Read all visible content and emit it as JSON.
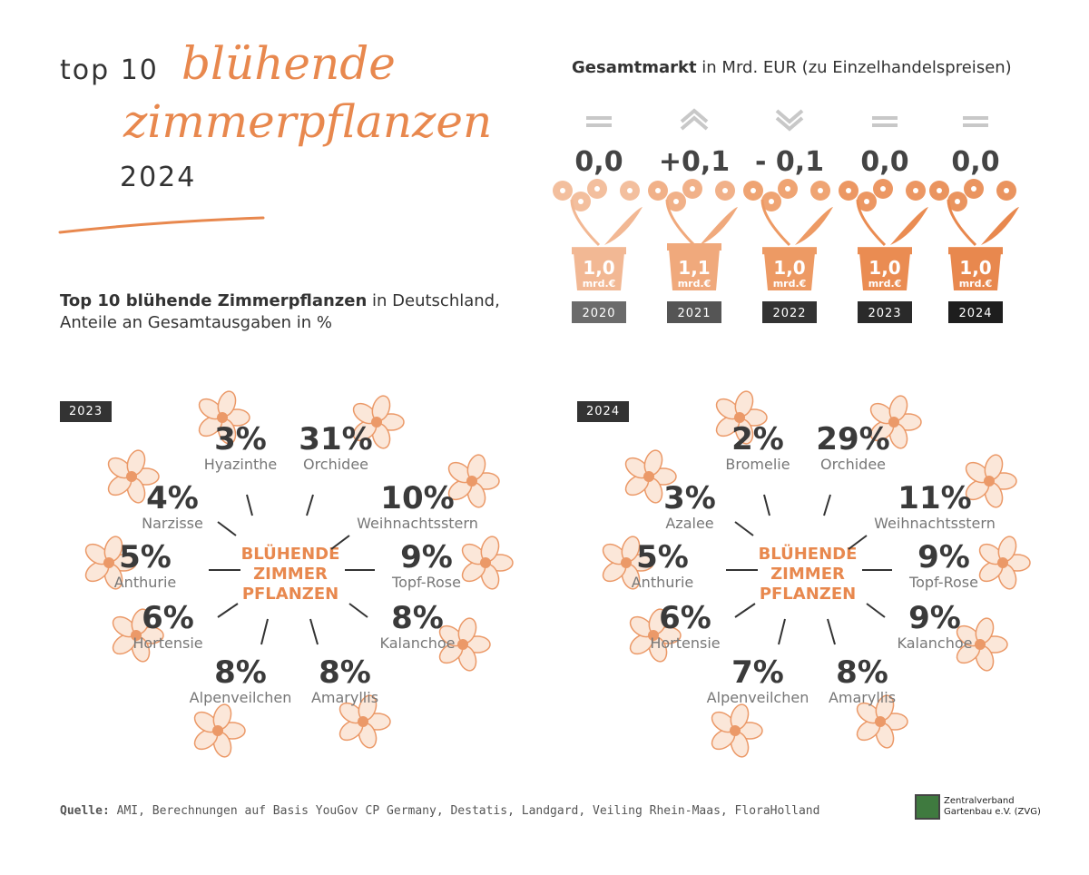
{
  "header": {
    "top_label": "top 10",
    "script_line1": "blühende",
    "script_line2": "zimmerpflanzen",
    "year": "2024"
  },
  "market": {
    "title_bold": "Gesamtmarkt",
    "title_rest": " in Mrd. EUR (zu Einzelhandelspreisen)",
    "accent": "#e8884e",
    "dark": "#333333"
  },
  "subtitle": {
    "bold": "Top 10 blühende Zimmerpflanzen",
    "rest": " in Deutschland,",
    "line2": "Anteile an Gesamtausgaben in %"
  },
  "center_label": [
    "BLÜHENDE",
    "ZIMMER",
    "PFLANZEN"
  ],
  "source": {
    "label": "Quelle:",
    "text": " AMI, Berechnungen auf Basis YouGov CP Germany, Destatis, Landgard, Veiling Rhein-Maas, FloraHolland"
  },
  "logo": {
    "line1": "Zentralverband",
    "line2": "Gartenbau e.V. (ZVG)"
  },
  "chart_data": [
    {
      "type": "bar",
      "title": "Gesamtmarkt in Mrd. EUR (zu Einzelhandelspreisen)",
      "categories": [
        "2020",
        "2021",
        "2022",
        "2023",
        "2024"
      ],
      "series": [
        {
          "values": [
            1.0,
            1.1,
            1.0,
            1.0,
            1.0
          ],
          "labels": [
            "1,0",
            "1,1",
            "1,0",
            "1,0",
            "1,0"
          ]
        }
      ],
      "unit_label": "mrd.€",
      "changes": [
        "0,0",
        "+0,1",
        "- 0,1",
        "0,0",
        "0,0"
      ],
      "trend_icons": [
        "equal-icon",
        "up-chevron-icon",
        "down-chevron-icon",
        "equal-icon",
        "equal-icon"
      ]
    },
    {
      "type": "table",
      "title": "2023",
      "categories": [
        "Hyazinthe",
        "Orchidee",
        "Narzisse",
        "Weihnachtsstern",
        "Anthurie",
        "Topf-Rose",
        "Hortensie",
        "Kalanchoe",
        "Alpenveilchen",
        "Amaryllis"
      ],
      "values": [
        3,
        31,
        4,
        10,
        5,
        9,
        6,
        8,
        8,
        8
      ],
      "labels": [
        "3%",
        "31%",
        "4%",
        "10%",
        "5%",
        "9%",
        "6%",
        "8%",
        "8%",
        "8%"
      ]
    },
    {
      "type": "table",
      "title": "2024",
      "categories": [
        "Bromelie",
        "Orchidee",
        "Azalee",
        "Weihnachtsstern",
        "Anthurie",
        "Topf-Rose",
        "Hortensie",
        "Kalanchoe",
        "Alpenveilchen",
        "Amaryllis"
      ],
      "values": [
        2,
        29,
        3,
        11,
        5,
        9,
        6,
        9,
        7,
        8
      ],
      "labels": [
        "2%",
        "29%",
        "3%",
        "11%",
        "5%",
        "9%",
        "6%",
        "9%",
        "7%",
        "8%"
      ]
    }
  ]
}
